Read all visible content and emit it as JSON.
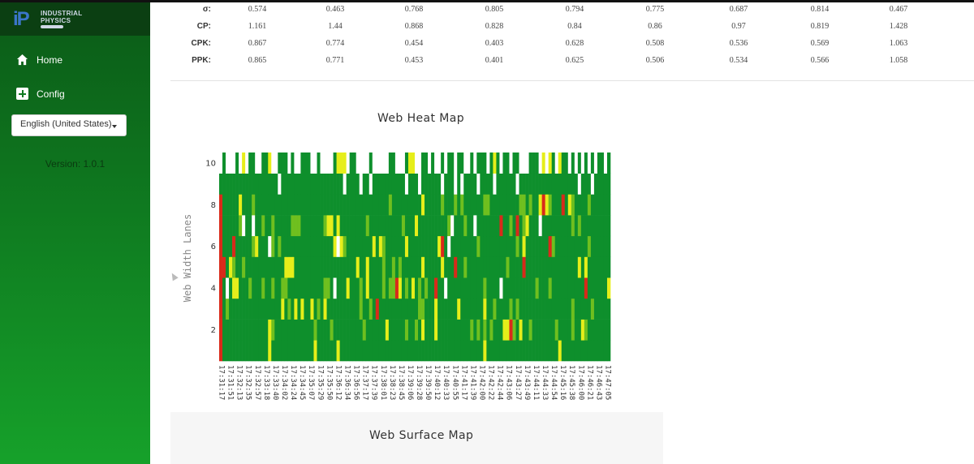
{
  "sidebar": {
    "logo": {
      "mark": "iP",
      "line1": "INDUSTRIAL",
      "line2": "PHYSICS"
    },
    "nav": [
      {
        "label": "Home",
        "icon": "home-icon"
      },
      {
        "label": "Config",
        "icon": "plus-square-icon"
      }
    ],
    "language": "English (United States)",
    "version": "Version: 1.0.1"
  },
  "stats": {
    "rows": [
      {
        "label": "σ:",
        "values": [
          "0.574",
          "0.463",
          "0.768",
          "0.805",
          "0.794",
          "0.775",
          "0.687",
          "0.814",
          "0.467"
        ]
      },
      {
        "label": "CP:",
        "values": [
          "1.161",
          "1.44",
          "0.868",
          "0.828",
          "0.84",
          "0.86",
          "0.97",
          "0.819",
          "1.428"
        ]
      },
      {
        "label": "CPK:",
        "values": [
          "0.867",
          "0.774",
          "0.454",
          "0.403",
          "0.628",
          "0.508",
          "0.536",
          "0.569",
          "1.063"
        ]
      },
      {
        "label": "PPK:",
        "values": [
          "0.865",
          "0.771",
          "0.453",
          "0.401",
          "0.625",
          "0.506",
          "0.534",
          "0.566",
          "1.058"
        ]
      }
    ]
  },
  "heatmap": {
    "title": "Web Heat Map",
    "ylabel": "Web Width Lanes"
  },
  "surface": {
    "title": "Web Surface Map"
  },
  "chart_data": {
    "type": "heatmap",
    "title": "Web Heat Map",
    "xlabel": "",
    "ylabel": "Web Width Lanes",
    "yticks": [
      2,
      4,
      6,
      8,
      10
    ],
    "ylim": [
      0,
      10
    ],
    "lanes": 10,
    "columns": 120,
    "colors": {
      "good": "#0e8f2c",
      "mid": "#6fbf1f",
      "warn": "#e6ee1a",
      "bad": "#d92a1a",
      "empty": "#ffffff"
    },
    "xticks": [
      "17:31:17",
      "17:31:51",
      "17:32:13",
      "17:32:35",
      "17:32:57",
      "17:33:18",
      "17:33:40",
      "17:34:02",
      "17:34:24",
      "17:34:45",
      "17:35:07",
      "17:35:29",
      "17:35:50",
      "17:36:12",
      "17:36:34",
      "17:36:56",
      "17:37:17",
      "17:37:39",
      "17:38:01",
      "17:38:23",
      "17:38:45",
      "17:39:06",
      "17:39:28",
      "17:39:50",
      "17:40:12",
      "17:40:33",
      "17:40:55",
      "17:41:17",
      "17:41:39",
      "17:42:00",
      "17:42:22",
      "17:42:44",
      "17:43:06",
      "17:43:27",
      "17:43:49",
      "17:44:11",
      "17:44:33",
      "17:44:54",
      "17:45:16",
      "17:45:38",
      "17:46:00",
      "17:46:21",
      "17:46:43",
      "17:47:05"
    ]
  }
}
